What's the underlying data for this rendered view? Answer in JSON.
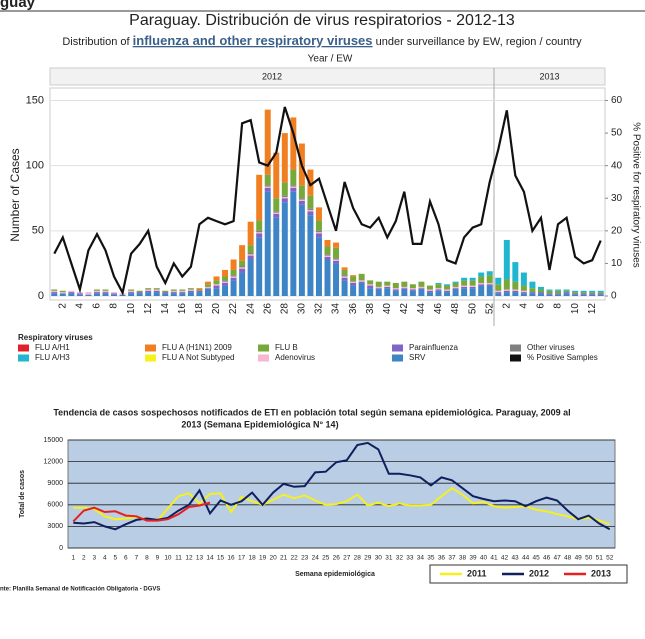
{
  "page_heading": "guay",
  "chart_data": [
    {
      "type": "bar",
      "title": "Paraguay. Distribución de virus respiratorios - 2012-13",
      "subtitle": [
        "Distribution of",
        "influenza and other respiratory viruses",
        "under surveillance by EW, region / country"
      ],
      "x_label": "Year / EW",
      "y_label": "Number of Cases",
      "y2_label": "% Positive for respiratory viruses",
      "legend_title": "Respiratory viruses",
      "groups": [
        {
          "name": "2012",
          "weeks": 52
        },
        {
          "name": "2013",
          "weeks": 13
        }
      ],
      "categories": [
        null,
        2,
        null,
        4,
        null,
        6,
        null,
        8,
        null,
        10,
        null,
        12,
        null,
        14,
        null,
        16,
        null,
        18,
        null,
        20,
        null,
        22,
        null,
        24,
        null,
        26,
        null,
        28,
        null,
        30,
        null,
        32,
        null,
        34,
        null,
        36,
        null,
        38,
        null,
        40,
        null,
        42,
        null,
        44,
        null,
        46,
        null,
        48,
        null,
        50,
        null,
        52,
        null,
        2,
        null,
        4,
        null,
        6,
        null,
        8,
        null,
        10,
        null,
        12,
        null
      ],
      "ylim": [
        0,
        155
      ],
      "yticks": [
        0,
        50,
        100,
        150
      ],
      "y2lim": [
        0,
        62
      ],
      "y2ticks": [
        0,
        10,
        20,
        30,
        40,
        50,
        60
      ],
      "series": [
        {
          "name": "SRV",
          "color": "#3d85c6",
          "values": [
            2,
            2,
            2,
            1,
            1,
            2,
            2,
            1,
            1,
            2,
            2,
            3,
            3,
            2,
            2,
            2,
            3,
            3,
            5,
            6,
            8,
            12,
            18,
            28,
            45,
            80,
            60,
            72,
            80,
            70,
            62,
            45,
            28,
            25,
            12,
            8,
            10,
            6,
            5,
            6,
            4,
            5,
            4,
            5,
            3,
            4,
            3,
            5,
            6,
            6,
            8,
            8,
            2,
            3,
            3,
            2,
            2,
            2,
            1,
            1,
            2,
            1,
            1,
            1,
            1
          ]
        },
        {
          "name": "Parainfluenza",
          "color": "#8064c8",
          "values": [
            1,
            0,
            1,
            1,
            0,
            1,
            1,
            1,
            0,
            1,
            1,
            1,
            1,
            1,
            1,
            1,
            1,
            1,
            1,
            2,
            2,
            2,
            3,
            3,
            3,
            3,
            3,
            3,
            3,
            3,
            3,
            3,
            2,
            2,
            2,
            2,
            1,
            2,
            1,
            1,
            1,
            1,
            1,
            1,
            1,
            1,
            1,
            1,
            1,
            1,
            1,
            1,
            1,
            1,
            1,
            1,
            1,
            1,
            1,
            1,
            1,
            1,
            1,
            1,
            1
          ]
        },
        {
          "name": "Adenovirus",
          "color": "#f7b6d2",
          "values": [
            1,
            1,
            1,
            1,
            2,
            1,
            1,
            1,
            1,
            1,
            0,
            1,
            1,
            0,
            1,
            1,
            1,
            0,
            1,
            1,
            1,
            1,
            1,
            1,
            1,
            1,
            1,
            1,
            1,
            1,
            1,
            1,
            1,
            1,
            1,
            1,
            1,
            1,
            1,
            1,
            1,
            1,
            1,
            1,
            1,
            1,
            1,
            1,
            1,
            1,
            1,
            1,
            1,
            1,
            1,
            1,
            0,
            0,
            0,
            0,
            0,
            0,
            0,
            0,
            0
          ]
        },
        {
          "name": "Other viruses",
          "color": "#808080",
          "values": [
            0,
            0,
            0,
            0,
            0,
            0,
            0,
            0,
            0,
            0,
            0,
            0,
            0,
            0,
            0,
            0,
            0,
            0,
            0,
            0,
            1,
            1,
            1,
            1,
            1,
            1,
            1,
            1,
            1,
            1,
            1,
            1,
            1,
            1,
            1,
            0,
            0,
            0,
            0,
            0,
            0,
            0,
            0,
            0,
            0,
            0,
            0,
            0,
            0,
            0,
            0,
            0,
            0,
            0,
            0,
            0,
            0,
            0,
            0,
            0,
            0,
            0,
            0,
            0,
            0
          ]
        },
        {
          "name": "FLU B",
          "color": "#77a83a",
          "values": [
            1,
            1,
            0,
            0,
            0,
            1,
            1,
            0,
            0,
            1,
            1,
            1,
            1,
            1,
            1,
            1,
            1,
            1,
            2,
            3,
            3,
            4,
            4,
            6,
            8,
            8,
            10,
            10,
            12,
            10,
            10,
            8,
            6,
            8,
            4,
            4,
            5,
            3,
            4,
            3,
            4,
            4,
            3,
            4,
            3,
            3,
            3,
            3,
            4,
            4,
            5,
            6,
            5,
            8,
            6,
            4,
            3,
            2,
            2,
            2,
            1,
            1,
            1,
            1,
            1
          ]
        },
        {
          "name": "FLU A/H3",
          "color": "#1fb6d0",
          "values": [
            0,
            0,
            0,
            0,
            0,
            0,
            0,
            0,
            0,
            0,
            0,
            0,
            0,
            0,
            0,
            0,
            0,
            0,
            0,
            0,
            0,
            0,
            0,
            0,
            0,
            0,
            0,
            0,
            0,
            0,
            0,
            0,
            0,
            0,
            0,
            0,
            0,
            0,
            0,
            0,
            0,
            0,
            0,
            0,
            0,
            1,
            1,
            1,
            2,
            2,
            3,
            3,
            5,
            30,
            15,
            10,
            5,
            2,
            1,
            1,
            1,
            1,
            1,
            1,
            1
          ]
        },
        {
          "name": "FLU A (H1N1) 2009",
          "color": "#f07f22",
          "values": [
            0,
            0,
            0,
            0,
            0,
            0,
            0,
            0,
            0,
            0,
            0,
            0,
            0,
            0,
            0,
            0,
            0,
            1,
            2,
            3,
            5,
            8,
            12,
            18,
            35,
            50,
            35,
            38,
            40,
            32,
            20,
            10,
            5,
            4,
            2,
            1,
            0,
            0,
            0,
            0,
            0,
            0,
            0,
            0,
            0,
            0,
            0,
            0,
            0,
            0,
            0,
            0,
            0,
            0,
            0,
            0,
            0,
            0,
            0,
            0,
            0,
            0,
            0,
            0,
            0
          ]
        },
        {
          "name": "FLU A Not Subtyped",
          "color": "#f5f01e",
          "values": [
            0,
            0,
            0,
            0,
            0,
            0,
            0,
            0,
            0,
            0,
            0,
            0,
            0,
            0,
            0,
            0,
            0,
            0,
            0,
            0,
            0,
            0,
            0,
            0,
            0,
            0,
            0,
            0,
            0,
            0,
            0,
            0,
            0,
            0,
            0,
            0,
            0,
            0,
            0,
            0,
            0,
            0,
            0,
            0,
            0,
            0,
            0,
            0,
            0,
            0,
            0,
            0,
            0,
            0,
            0,
            0,
            0,
            0,
            0,
            0,
            0,
            0,
            0,
            0,
            0
          ]
        },
        {
          "name": "FLU A/H1",
          "color": "#e0202a",
          "values": [
            0,
            0,
            0,
            0,
            0,
            0,
            0,
            0,
            0,
            0,
            0,
            0,
            0,
            0,
            0,
            0,
            0,
            0,
            0,
            0,
            0,
            0,
            0,
            0,
            0,
            0,
            0,
            0,
            0,
            0,
            0,
            0,
            0,
            0,
            0,
            0,
            0,
            0,
            0,
            0,
            0,
            0,
            0,
            0,
            0,
            0,
            0,
            0,
            0,
            0,
            0,
            0,
            0,
            0,
            0,
            0,
            0,
            0,
            0,
            0,
            0,
            0,
            0,
            0,
            0
          ]
        },
        {
          "name": "% Positive Samples",
          "color": "#111111",
          "axis": "y2",
          "type": "line",
          "values": [
            13,
            18,
            10,
            2,
            14,
            19,
            14,
            6,
            1,
            13,
            16,
            20,
            9,
            4,
            10,
            6,
            9,
            22,
            24,
            23,
            22,
            23,
            53,
            54,
            41,
            40,
            44,
            58,
            50,
            40,
            34,
            36,
            28,
            20,
            35,
            27,
            22,
            21,
            24,
            18,
            23,
            32,
            16,
            16,
            29,
            22,
            11,
            10,
            18,
            21,
            22,
            35,
            45,
            57,
            37,
            32,
            20,
            24,
            8,
            22,
            24,
            12,
            10,
            11,
            17
          ]
        }
      ]
    },
    {
      "type": "line",
      "title": [
        "Tendencia de casos sospechosos notificados de ETI en población total según semana epidemiológica. Paraguay, 2009 al",
        "2013 (Semana Epidemiológica N° 14)"
      ],
      "x_label": "Semana epidemiológica",
      "y_label": "Total de casos",
      "source": "nte: Planilla Semanal de Notificación Obligatoria - DGVS",
      "categories": [
        1,
        2,
        3,
        4,
        5,
        6,
        7,
        8,
        9,
        10,
        11,
        12,
        13,
        14,
        15,
        16,
        17,
        18,
        19,
        20,
        21,
        22,
        23,
        24,
        25,
        26,
        27,
        28,
        29,
        30,
        31,
        32,
        33,
        34,
        35,
        36,
        37,
        38,
        39,
        40,
        41,
        42,
        43,
        44,
        45,
        46,
        47,
        48,
        49,
        50,
        51,
        52
      ],
      "ylim": [
        0,
        15000
      ],
      "yticks": [
        0,
        3000,
        6000,
        9000,
        12000,
        15000
      ],
      "grid": true,
      "series": [
        {
          "name": "2011",
          "color": "#f5f01e",
          "values": [
            5600,
            5600,
            5400,
            4400,
            4000,
            4100,
            4300,
            4000,
            3800,
            5500,
            7200,
            7600,
            6200,
            7500,
            7600,
            5000,
            7100,
            6500,
            6000,
            6700,
            7400,
            6900,
            7300,
            6600,
            6000,
            6100,
            6500,
            7400,
            5900,
            6300,
            5800,
            6200,
            5900,
            5900,
            6000,
            7200,
            8300,
            7400,
            6200,
            6400,
            5800,
            5600,
            5700,
            5800,
            5300,
            5100,
            4700,
            4400,
            4000,
            4200,
            3800,
            3300
          ]
        },
        {
          "name": "2012",
          "color": "#10205e",
          "values": [
            3500,
            3400,
            3600,
            3000,
            2600,
            3300,
            3900,
            4100,
            3900,
            4200,
            5200,
            6000,
            8000,
            4800,
            6600,
            6000,
            6500,
            7700,
            6000,
            7700,
            8900,
            8500,
            8600,
            10500,
            10600,
            11900,
            12200,
            14300,
            14600,
            13700,
            10300,
            10300,
            10100,
            9800,
            8700,
            9800,
            9400,
            8300,
            7200,
            6800,
            6500,
            6600,
            6500,
            5800,
            6500,
            7000,
            6600,
            5200,
            4000,
            4500,
            3400,
            2600
          ]
        },
        {
          "name": "2013",
          "color": "#e52020",
          "values": [
            3700,
            5200,
            5600,
            5000,
            5100,
            4500,
            4400,
            3800,
            3800,
            4000,
            4700,
            5700,
            5900,
            6300,
            null,
            null,
            null,
            null,
            null,
            null,
            null,
            null,
            null,
            null,
            null,
            null,
            null,
            null,
            null,
            null,
            null,
            null,
            null,
            null,
            null,
            null,
            null,
            null,
            null,
            null,
            null,
            null,
            null,
            null,
            null,
            null,
            null,
            null,
            null,
            null,
            null,
            null
          ]
        }
      ]
    }
  ]
}
